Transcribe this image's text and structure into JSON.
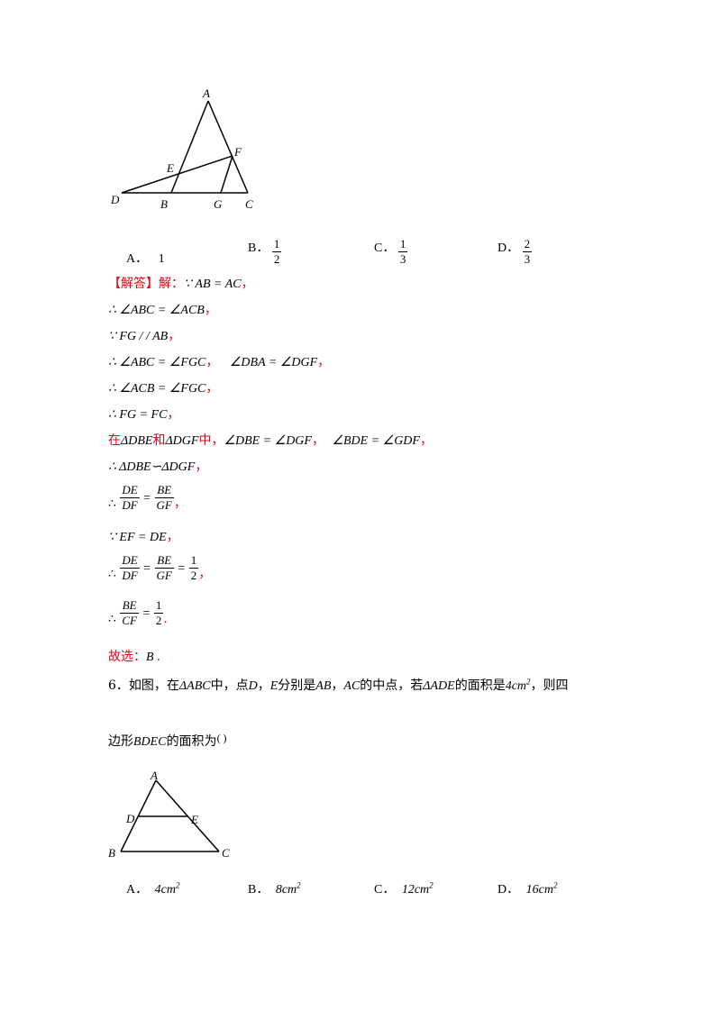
{
  "figure1": {
    "labels": {
      "A": "A",
      "B": "B",
      "C": "C",
      "D": "D",
      "E": "E",
      "F": "F",
      "G": "G"
    }
  },
  "q5_options": {
    "a_letter": "A．",
    "a_value": "1",
    "b_letter": "B．",
    "b_num": "1",
    "b_den": "2",
    "c_letter": "C．",
    "c_num": "1",
    "c_den": "3",
    "d_letter": "D．",
    "d_num": "2",
    "d_den": "3"
  },
  "solution": {
    "header": "【解答】解：",
    "l1": "∵ AB = AC",
    "l2": "∴ ∠ABC = ∠ACB",
    "l3": "∵ FG / / AB",
    "l4a": "∴ ∠ABC = ∠FGC",
    "l4b": "∠DBA = ∠DGF",
    "l5": "∴ ∠ACB = ∠FGC",
    "l6": "∴ FG = FC",
    "l7_zai": "在",
    "l7_t1": "ΔDBE",
    "l7_he": "和",
    "l7_t2": "ΔDGF",
    "l7_zhong": "中，",
    "l7_a1": "∠DBE = ∠DGF",
    "l7_a2": "∠BDE = ∠GDF",
    "l8": "∴ ΔDBE∽ΔDGF",
    "l9_therefore": "∴",
    "l9_f1_num": "DE",
    "l9_f1_den": "DF",
    "l9_f2_num": "BE",
    "l9_f2_den": "GF",
    "l10": "∵ EF = DE",
    "l11_therefore": "∴",
    "l11_f1_num": "DE",
    "l11_f1_den": "DF",
    "l11_f2_num": "BE",
    "l11_f2_den": "GF",
    "l11_f3_num": "1",
    "l11_f3_den": "2",
    "l12_therefore": "∴",
    "l12_f1_num": "BE",
    "l12_f1_den": "CF",
    "l12_f2_num": "1",
    "l12_f2_den": "2",
    "answer_label": "故选：",
    "answer_value": "B",
    "eq": "=",
    "comma": "，",
    "period": "."
  },
  "q6": {
    "line1_a": "6．如图，在",
    "tri_abc": "ΔABC",
    "line1_b": "中，点",
    "pt_d": "D",
    "comma": "，",
    "pt_e": "E",
    "line1_c": "分别是",
    "seg_ab": "AB",
    "seg_ac": "AC",
    "line1_d": "的中点，若",
    "tri_ade": "ΔADE",
    "line1_e": "的面积是",
    "area": "4cm",
    "sup2": "2",
    "line1_f": "，则四",
    "line2_a": "边形",
    "quad": "BDEC",
    "line2_b": "的面积为",
    "paren": "(        )"
  },
  "figure2": {
    "labels": {
      "A": "A",
      "B": "B",
      "C": "C",
      "D": "D",
      "E": "E"
    }
  },
  "q6_options": {
    "a_letter": "A．",
    "a_value": "4cm",
    "b_letter": "B．",
    "b_value": "8cm",
    "c_letter": "C．",
    "c_value": "12cm",
    "d_letter": "D．",
    "d_value": "16cm",
    "sup": "2"
  }
}
